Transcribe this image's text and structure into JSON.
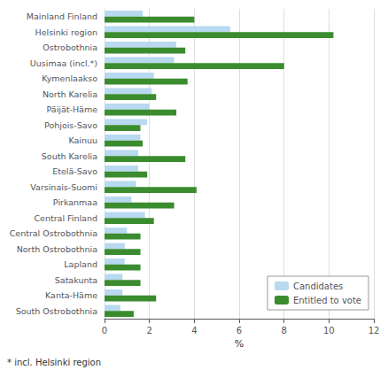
{
  "chart_data": {
    "type": "bar",
    "orientation": "horizontal",
    "categories": [
      "South Ostrobothnia",
      "Kanta-Häme",
      "Satakunta",
      "Lapland",
      "North Ostrobothnia",
      "Central Ostrobothnia",
      "Central Finland",
      "Pirkanmaa",
      "Varsinais-Suomi",
      "Etelä-Savo",
      "South Karelia",
      "Kainuu",
      "Pohjois-Savo",
      "Päijät-Häme",
      "North Karelia",
      "Kymenlaakso",
      "Uusimaa (incl.*)",
      "Ostrobothnia",
      "Helsinki region",
      "Mainland Finland"
    ],
    "series": [
      {
        "name": "Candidates",
        "color": "#b8d9f0",
        "values": [
          0.7,
          0.8,
          0.8,
          0.9,
          0.9,
          1.0,
          1.8,
          1.2,
          1.4,
          1.5,
          1.5,
          1.6,
          1.9,
          2.0,
          2.1,
          2.2,
          3.1,
          3.2,
          5.6,
          1.7
        ]
      },
      {
        "name": "Entitled to vote",
        "color": "#3a8c2f",
        "values": [
          1.3,
          2.3,
          1.6,
          1.6,
          1.6,
          1.6,
          2.2,
          3.1,
          4.1,
          1.9,
          3.6,
          1.7,
          1.6,
          3.2,
          2.3,
          3.7,
          8.0,
          3.6,
          10.2,
          4.0
        ]
      }
    ],
    "xlabel": "%",
    "xlim": [
      0,
      12
    ],
    "xticks": [
      0,
      2,
      4,
      6,
      8,
      10,
      12
    ],
    "grid": true,
    "legend": "lower right",
    "footnote": "* incl. Helsinki region"
  }
}
